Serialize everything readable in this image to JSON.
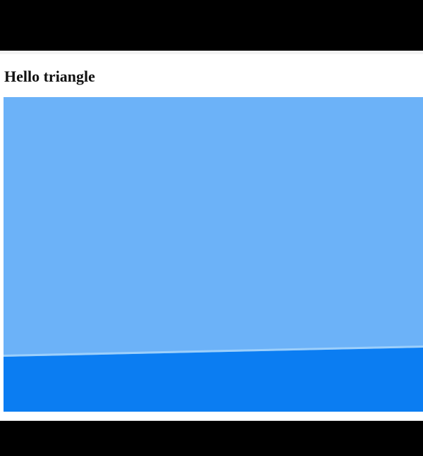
{
  "page": {
    "title": "Hello triangle"
  },
  "canvas": {
    "background_color": "#6cb2f8",
    "triangle_color": "#0b7df2",
    "edge_highlight_color": "#a9d6fb"
  }
}
